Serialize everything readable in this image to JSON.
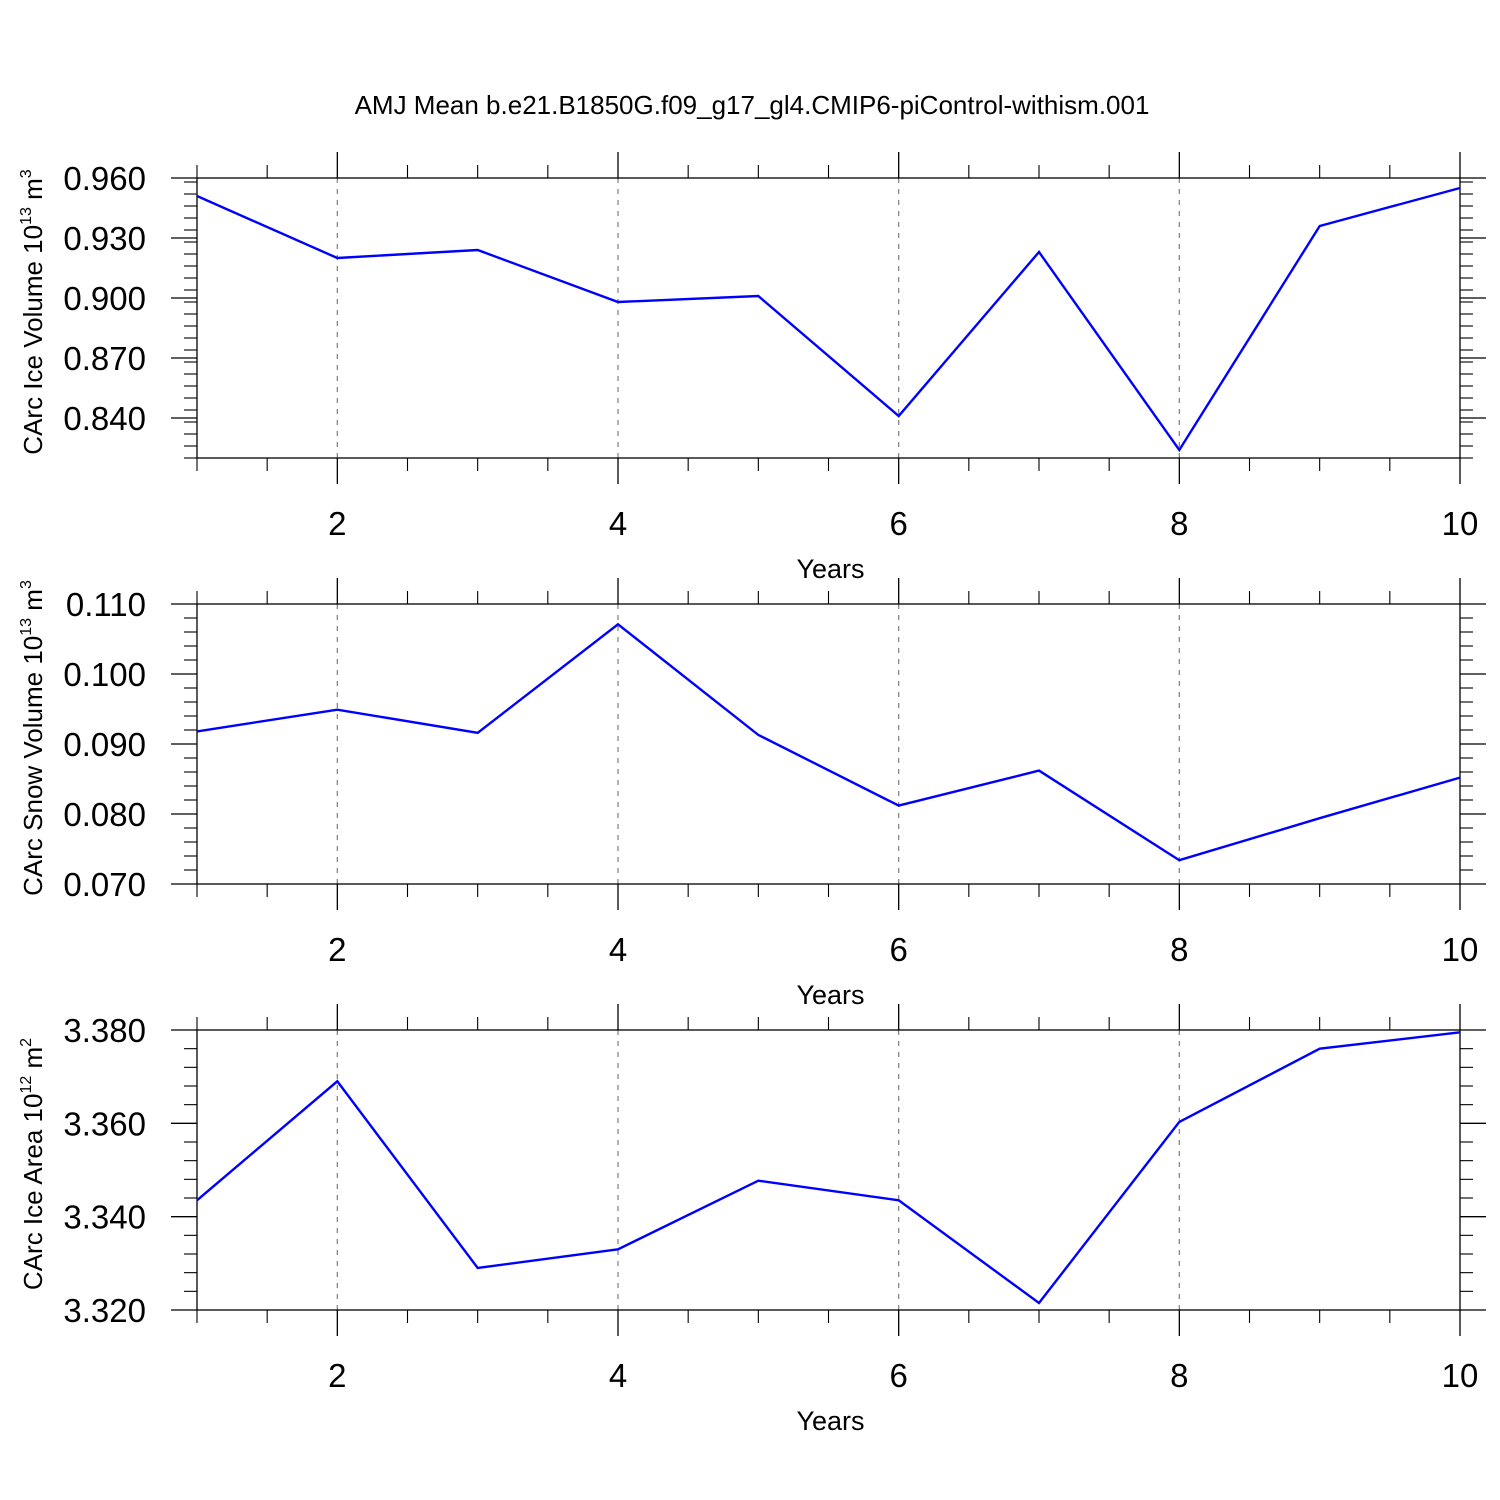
{
  "title": "AMJ Mean b.e21.B1850G.f09_g17_gl4.CMIP6-piControl-withism.001",
  "colors": {
    "line": "#0000ff",
    "axis": "#000000",
    "grid": "#888888"
  },
  "chart_data": [
    {
      "type": "line",
      "ylabel": {
        "text": "CArc Ice Volume 10",
        "exp": "13",
        "unit": " m",
        "unit_exp": "3"
      },
      "xlabel": "Years",
      "x": [
        1,
        2,
        3,
        4,
        5,
        6,
        7,
        8,
        9,
        10
      ],
      "xlim": [
        1,
        10
      ],
      "xticks": [
        2,
        4,
        6,
        8,
        10
      ],
      "xtick_labels": [
        "2",
        "4",
        "6",
        "8",
        "10"
      ],
      "ylim": [
        0.82,
        0.96
      ],
      "yticks": [
        0.84,
        0.87,
        0.9,
        0.93,
        0.96
      ],
      "ytick_labels": [
        "0.840",
        "0.870",
        "0.900",
        "0.930",
        "0.960"
      ],
      "grid": "vertical dashed",
      "series": [
        {
          "values": [
            0.951,
            0.92,
            0.924,
            0.898,
            0.901,
            0.841,
            0.923,
            0.824,
            0.936,
            0.955
          ]
        }
      ]
    },
    {
      "type": "line",
      "ylabel": {
        "text": "CArc Snow Volume 10",
        "exp": "13",
        "unit": " m",
        "unit_exp": "3"
      },
      "xlabel": "Years",
      "x": [
        1,
        2,
        3,
        4,
        5,
        6,
        7,
        8,
        9,
        10
      ],
      "xlim": [
        1,
        10
      ],
      "xticks": [
        2,
        4,
        6,
        8,
        10
      ],
      "xtick_labels": [
        "2",
        "4",
        "6",
        "8",
        "10"
      ],
      "ylim": [
        0.07,
        0.11
      ],
      "yticks": [
        0.07,
        0.08,
        0.09,
        0.1,
        0.11
      ],
      "ytick_labels": [
        "0.070",
        "0.080",
        "0.090",
        "0.100",
        "0.110"
      ],
      "grid": "vertical dashed",
      "series": [
        {
          "values": [
            0.0918,
            0.0949,
            0.0916,
            0.1071,
            0.0913,
            0.0812,
            0.0862,
            0.0734,
            0.0794,
            0.0852
          ]
        }
      ]
    },
    {
      "type": "line",
      "ylabel": {
        "text": "CArc Ice Area 10",
        "exp": "12",
        "unit": " m",
        "unit_exp": "2"
      },
      "xlabel": "Years",
      "x": [
        1,
        2,
        3,
        4,
        5,
        6,
        7,
        8,
        9,
        10
      ],
      "xlim": [
        1,
        10
      ],
      "xticks": [
        2,
        4,
        6,
        8,
        10
      ],
      "xtick_labels": [
        "2",
        "4",
        "6",
        "8",
        "10"
      ],
      "ylim": [
        3.32,
        3.38
      ],
      "yticks": [
        3.32,
        3.34,
        3.36,
        3.38
      ],
      "ytick_labels": [
        "3.320",
        "3.340",
        "3.360",
        "3.380"
      ],
      "grid": "vertical dashed",
      "series": [
        {
          "values": [
            3.3435,
            3.369,
            3.329,
            3.333,
            3.3477,
            3.3435,
            3.3215,
            3.3603,
            3.376,
            3.3795
          ]
        }
      ]
    }
  ]
}
